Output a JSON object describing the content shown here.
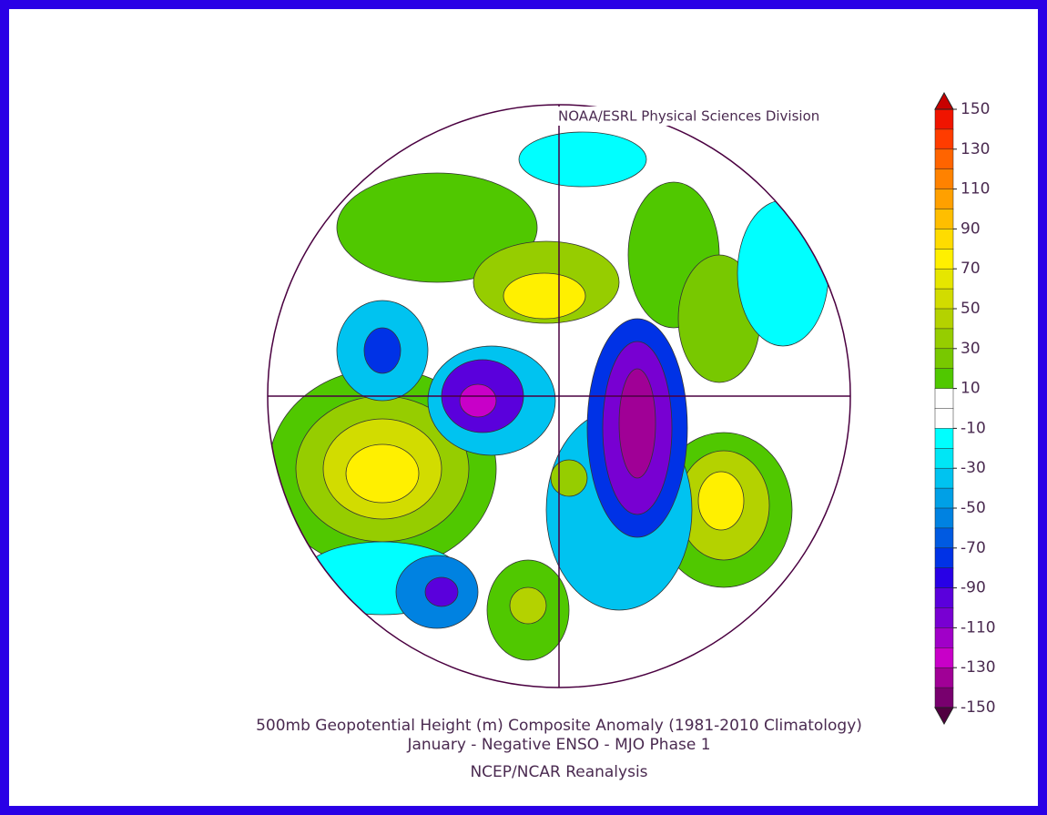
{
  "header": {
    "credit": "NOAA/ESRL Physical Sciences Division"
  },
  "title": {
    "line1": "500mb Geopotential Height (m) Composite Anomaly (1981-2010 Climatology)",
    "line2": "January - Negative ENSO - MJO Phase 1",
    "line3": "NCEP/NCAR Reanalysis"
  },
  "colorbar": {
    "ticks": [
      150,
      130,
      110,
      90,
      70,
      50,
      30,
      10,
      -10,
      -30,
      -50,
      -70,
      -90,
      -110,
      -130,
      -150
    ],
    "over_color": "#c80000",
    "under_color": "#500040",
    "colors": [
      "#f01400",
      "#ff3c00",
      "#ff6400",
      "#ff8200",
      "#ffa000",
      "#ffbe00",
      "#ffdc00",
      "#fff000",
      "#e6e600",
      "#d2dc00",
      "#b4d200",
      "#96cd00",
      "#78c800",
      "#50c800",
      "#ffffff",
      "#ffffff",
      "#00ffff",
      "#00e6f5",
      "#00c3f0",
      "#00a0e6",
      "#0082e1",
      "#005ae1",
      "#0032e6",
      "#2800e6",
      "#5a00dc",
      "#7800d2",
      "#a000c8",
      "#c800c8",
      "#a00096",
      "#78006e"
    ]
  }
}
